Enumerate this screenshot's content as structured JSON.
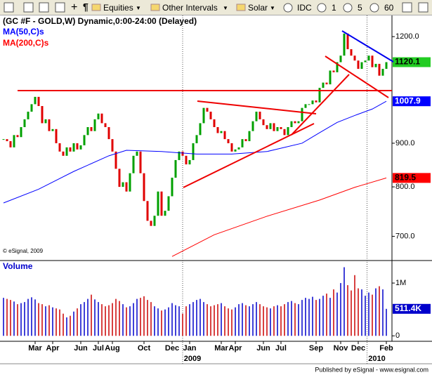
{
  "toolbar": {
    "items": [
      "Equities",
      "Other Intervals",
      "Solar",
      "IDC",
      "1",
      "5",
      "60"
    ]
  },
  "chart_data": {
    "type": "candlestick",
    "title": "(GC #F - GOLD,W) Dynamic,0:00-24:00 (Delayed)",
    "copyright": "© eSignal, 2009",
    "footer": "Published by eSignal - www.esignal.com",
    "log_scale": true,
    "ylim": [
      657,
      1261
    ],
    "yticks": [
      {
        "value": 1200,
        "label": "1200.0"
      },
      {
        "value": 900,
        "label": "900.0"
      },
      {
        "value": 800,
        "label": "800.0"
      },
      {
        "value": 700,
        "label": "700.0"
      }
    ],
    "xlim": [
      -1,
      110.4
    ],
    "xticks": [
      {
        "value": 9,
        "label": "Mar"
      },
      {
        "value": 14,
        "label": "Apr"
      },
      {
        "value": 22,
        "label": "Jun"
      },
      {
        "value": 27,
        "label": "Jul"
      },
      {
        "value": 31,
        "label": "Aug"
      },
      {
        "value": 40,
        "label": "Oct"
      },
      {
        "value": 48,
        "label": "Dec"
      },
      {
        "value": 53,
        "label": "Jan"
      },
      {
        "value": 62,
        "label": "Mar"
      },
      {
        "value": 66,
        "label": "Apr"
      },
      {
        "value": 74,
        "label": "Jun"
      },
      {
        "value": 79,
        "label": "Jul"
      },
      {
        "value": 89,
        "label": "Sep"
      },
      {
        "value": 96,
        "label": "Nov"
      },
      {
        "value": 101,
        "label": "Dec"
      },
      {
        "value": 109,
        "label": "Feb"
      }
    ],
    "year_ticks": [
      {
        "value": 51,
        "label": "2009"
      },
      {
        "value": 103.5,
        "label": "2010"
      }
    ],
    "up_color": "#00a000",
    "down_color": "#e00000",
    "last_color": "#22cc22",
    "values": [
      910,
      905,
      890,
      920,
      915,
      940,
      960,
      980,
      1000,
      1020,
      995,
      950,
      960,
      930,
      935,
      900,
      880,
      870,
      890,
      880,
      900,
      885,
      895,
      920,
      940,
      930,
      960,
      975,
      950,
      940,
      910,
      880,
      840,
      800,
      810,
      790,
      830,
      870,
      880,
      830,
      770,
      730,
      720,
      740,
      790,
      740,
      750,
      780,
      820,
      860,
      880,
      870,
      850,
      860,
      900,
      920,
      950,
      990,
      980,
      960,
      940,
      925,
      930,
      910,
      900,
      880,
      885,
      890,
      910,
      905,
      930,
      955,
      980,
      960,
      945,
      935,
      950,
      930,
      940,
      935,
      920,
      940,
      955,
      950,
      955,
      990,
      1000,
      1000,
      1010,
      1005,
      1045,
      1060,
      1055,
      1095,
      1090,
      1120,
      1140,
      1210,
      1160,
      1140,
      1125,
      1100,
      1120,
      1125,
      1140,
      1105,
      1115,
      1080,
      1100,
      1120.1
    ],
    "indicators": [
      {
        "name": "MA(50,C)s",
        "color": "#0000ff",
        "x": [
          0,
          10,
          20,
          30,
          35,
          45,
          55,
          65,
          75,
          85,
          90,
          95,
          100,
          105,
          109
        ],
        "values": [
          766,
          795,
          834,
          870,
          883,
          880,
          874,
          874,
          880,
          900,
          926,
          952,
          970,
          987,
          1007.9
        ]
      },
      {
        "name": "MA(200,C)s",
        "color": "#ff0000",
        "x": [
          48,
          60,
          75,
          90,
          100,
          109
        ],
        "values": [
          663,
          703,
          739,
          772,
          799,
          819.5
        ]
      }
    ],
    "volume": {
      "name": "Volume",
      "color_up": "#0000cc",
      "color_down": "#cc0000",
      "ylim": [
        -90000,
        1400000
      ],
      "yticks": [
        {
          "value": 1000000,
          "label": "1M"
        },
        0
      ],
      "last_label": "511.4K",
      "values": [
        720000,
        700000,
        680000,
        650000,
        600000,
        620000,
        640000,
        700000,
        730000,
        690000,
        620000,
        600000,
        560000,
        580000,
        540000,
        520000,
        500000,
        420000,
        350000,
        380000,
        460000,
        520000,
        600000,
        640000,
        700000,
        780000,
        690000,
        640000,
        600000,
        560000,
        580000,
        620000,
        700000,
        660000,
        600000,
        540000,
        560000,
        620000,
        700000,
        720000,
        750000,
        680000,
        640000,
        560000,
        520000,
        480000,
        500000,
        540000,
        620000,
        580000,
        560000,
        420000,
        560000,
        600000,
        640000,
        680000,
        700000,
        640000,
        600000,
        560000,
        580000,
        600000,
        620000,
        560000,
        520000,
        500000,
        540000,
        600000,
        620000,
        580000,
        560000,
        600000,
        640000,
        600000,
        560000,
        540000,
        520000,
        560000,
        580000,
        560000,
        600000,
        640000,
        660000,
        620000,
        600000,
        680000,
        720000,
        700000,
        740000,
        680000,
        700000,
        760000,
        800000,
        720000,
        880000,
        820000,
        1000000,
        1300000,
        960000,
        860000,
        1150000,
        900000,
        880000,
        760000,
        820000,
        780000,
        900000,
        940000,
        880000,
        511400
      ]
    }
  }
}
